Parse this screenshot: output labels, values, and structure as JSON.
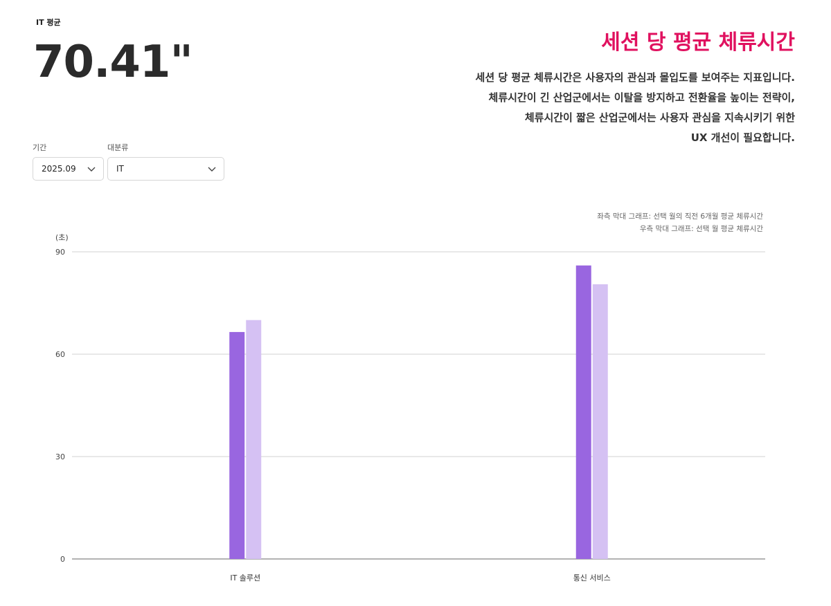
{
  "kpi": {
    "label": "IT 평균",
    "value": "70.41\""
  },
  "header": {
    "title": "세션 당 평균 체류시간",
    "description_lines": [
      "세션 당 평균 체류시간은 사용자의 관심과 몰입도를 보여주는 지표입니다.",
      "체류시간이 긴 산업군에서는 이탈을 방지하고 전환율을 높이는 전략이,",
      "체류시간이 짧은 산업군에서는 사용자 관심을 지속시키기 위한",
      "UX 개선이 필요합니다."
    ]
  },
  "filters": {
    "period": {
      "label": "기간",
      "value": "2025.09"
    },
    "category": {
      "label": "대분류",
      "value": "IT"
    }
  },
  "legend_notes": [
    "좌측 막대 그래프: 선택 월의 직전 6개월 평균 체류시간",
    "우측 막대 그래프: 선택 월 평균 체류시간"
  ],
  "colors": {
    "title": "#e0115f",
    "bar_prev": "#9966e0",
    "bar_current": "#d5c1f3",
    "grid": "#d0d0d0",
    "axis": "#666666"
  },
  "chart_data": {
    "type": "bar",
    "categories": [
      "IT 솔루션",
      "통신 서비스"
    ],
    "series": [
      {
        "values": [
          66.5,
          86
        ]
      },
      {
        "values": [
          70,
          80.5
        ]
      }
    ],
    "ylabel": "(초)",
    "ylim": [
      0,
      90
    ],
    "yticks": [
      0,
      30,
      60,
      90
    ],
    "grid": true
  }
}
